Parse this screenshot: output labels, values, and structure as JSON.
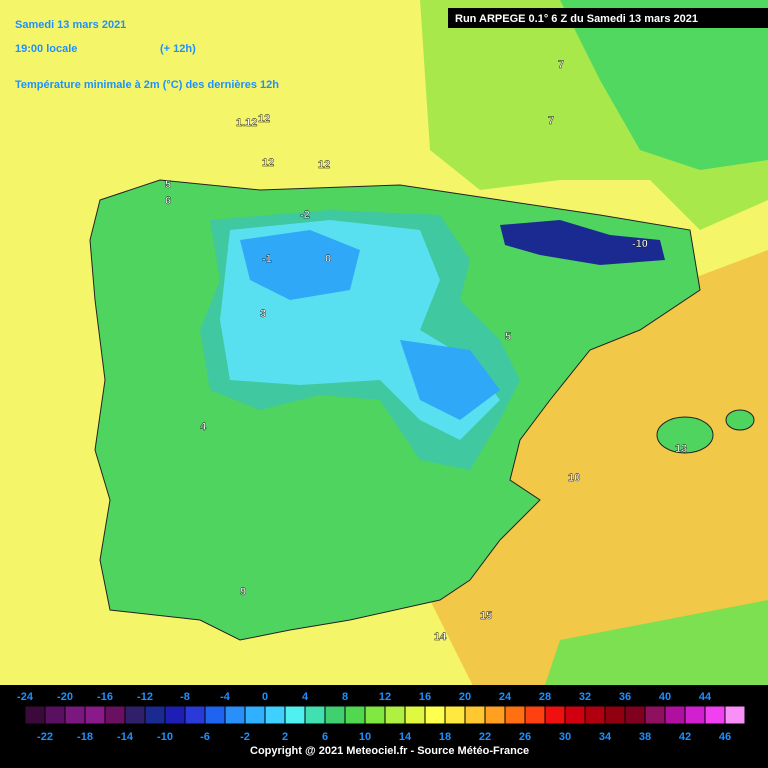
{
  "header": {
    "date": "Samedi 13 mars 2021",
    "time": "19:00 locale",
    "offset": "(+ 12h)",
    "title": "Température minimale à 2m (°C) des dernières 12h",
    "run": "Run ARPEGE 0.1° 6 Z du Samedi 13 mars 2021"
  },
  "map_labels": [
    "12",
    "1.12",
    "12",
    "12",
    "7",
    "7",
    "5",
    "6",
    "4",
    "-1",
    "0",
    "-2",
    "-10",
    "3",
    "5",
    "10",
    "13",
    "15",
    "14",
    "9"
  ],
  "colorbar": {
    "top_labels": [
      -24,
      -20,
      -16,
      -12,
      -8,
      -4,
      0,
      4,
      8,
      12,
      16,
      20,
      24,
      28,
      32,
      36,
      40,
      44
    ],
    "bottom_labels": [
      -22,
      -18,
      -14,
      -10,
      -6,
      -2,
      2,
      6,
      10,
      14,
      18,
      22,
      26,
      30,
      34,
      38,
      42,
      46
    ],
    "colors": [
      "#3a0a3a",
      "#5a1060",
      "#7a1880",
      "#8a1a8a",
      "#6a1060",
      "#30206a",
      "#1a2a90",
      "#1e1eb4",
      "#2a3ad8",
      "#1e64f0",
      "#2890f8",
      "#30b0ff",
      "#40d0ff",
      "#50f0f0",
      "#40e0b0",
      "#40d070",
      "#50d850",
      "#80e840",
      "#b0f040",
      "#e0f840",
      "#ffff50",
      "#ffe840",
      "#ffc830",
      "#ffa020",
      "#ff7010",
      "#ff4010",
      "#f01010",
      "#d00010",
      "#b00010",
      "#900010",
      "#800020",
      "#901060",
      "#b010a0",
      "#d020d0",
      "#f040f0",
      "#f890f8"
    ]
  },
  "copyright": "Copyright @ 2021 Meteociel.fr - Source Météo-France"
}
